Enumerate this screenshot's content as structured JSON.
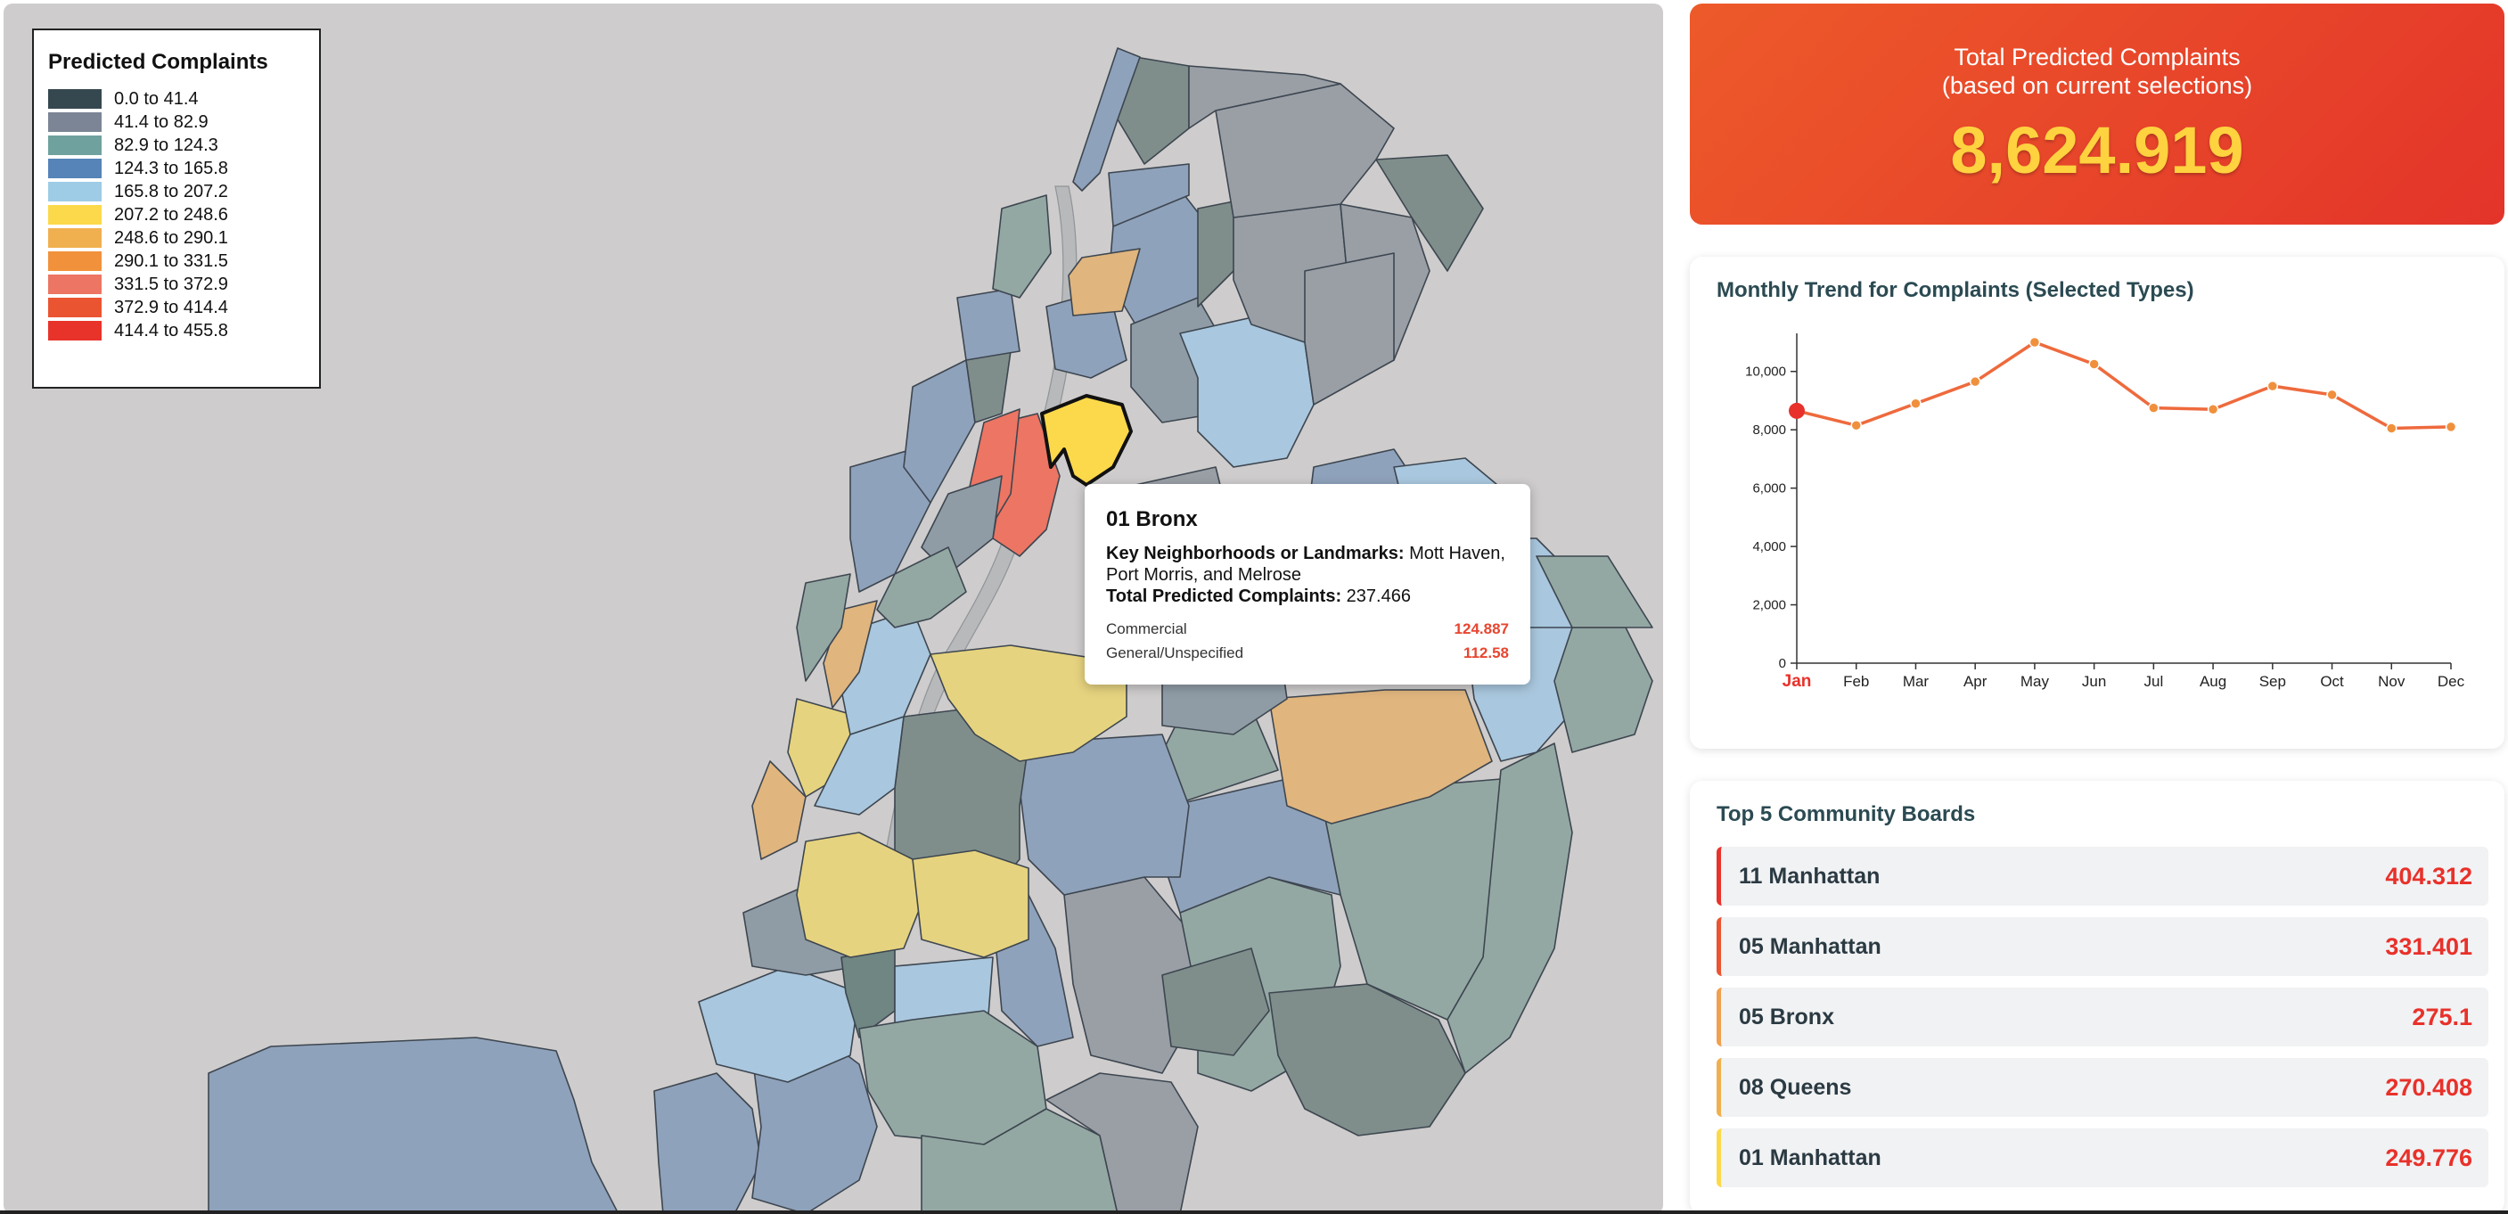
{
  "legend": {
    "title": "Predicted Complaints",
    "items": [
      {
        "label": "0.0 to 41.4",
        "color": "#36484f"
      },
      {
        "label": "41.4 to 82.9",
        "color": "#7b8595"
      },
      {
        "label": "82.9 to 124.3",
        "color": "#6fa29e"
      },
      {
        "label": "124.3 to 165.8",
        "color": "#5683b8"
      },
      {
        "label": "165.8 to 207.2",
        "color": "#9ecbe6"
      },
      {
        "label": "207.2 to 248.6",
        "color": "#fcd94b"
      },
      {
        "label": "248.6 to 290.1",
        "color": "#f0b04f"
      },
      {
        "label": "290.1 to 331.5",
        "color": "#f1913b"
      },
      {
        "label": "331.5 to 372.9",
        "color": "#ec7563"
      },
      {
        "label": "372.9 to 414.4",
        "color": "#ea5431"
      },
      {
        "label": "414.4 to 455.8",
        "color": "#e8332b"
      }
    ]
  },
  "tooltip": {
    "title": "01 Bronx",
    "neighborhoods_label": "Key Neighborhoods or Landmarks:",
    "neighborhoods_value": "Mott Haven, Port Morris, and Melrose",
    "total_label": "Total Predicted Complaints:",
    "total_value": "237.466",
    "rows": [
      {
        "label": "Commercial",
        "value": "124.887"
      },
      {
        "label": "General/Unspecified",
        "value": "112.58"
      }
    ]
  },
  "total": {
    "title_line1": "Total Predicted Complaints",
    "title_line2": "(based on current selections)",
    "value": "8,624.919"
  },
  "trend": {
    "title": "Monthly Trend for Complaints (Selected Types)"
  },
  "chart_data": {
    "type": "line",
    "title": "Monthly Trend for Complaints (Selected Types)",
    "categories": [
      "Jan",
      "Feb",
      "Mar",
      "Apr",
      "May",
      "Jun",
      "Jul",
      "Aug",
      "Sep",
      "Oct",
      "Nov",
      "Dec"
    ],
    "values": [
      8650,
      8150,
      8900,
      9650,
      11000,
      10250,
      8750,
      8700,
      9500,
      9200,
      8050,
      8100
    ],
    "ylim": [
      0,
      11000
    ],
    "yticks": [
      0,
      2000,
      4000,
      6000,
      8000,
      10000
    ],
    "ytick_labels": [
      "0",
      "2,000",
      "4,000",
      "6,000",
      "8,000",
      "10,000"
    ],
    "highlight_category": "Jan",
    "line_color": "#ee6a3d",
    "highlight_color": "#e8312a"
  },
  "top5": {
    "title": "Top 5 Community Boards",
    "items": [
      {
        "name": "11 Manhattan",
        "value": "404.312",
        "accent": "#e8332b"
      },
      {
        "name": "05 Manhattan",
        "value": "331.401",
        "accent": "#ea5431"
      },
      {
        "name": "05 Bronx",
        "value": "275.1",
        "accent": "#f0a04f"
      },
      {
        "name": "08 Queens",
        "value": "270.408",
        "accent": "#f0b04f"
      },
      {
        "name": "01 Manhattan",
        "value": "249.776",
        "accent": "#fcd94b"
      }
    ]
  }
}
